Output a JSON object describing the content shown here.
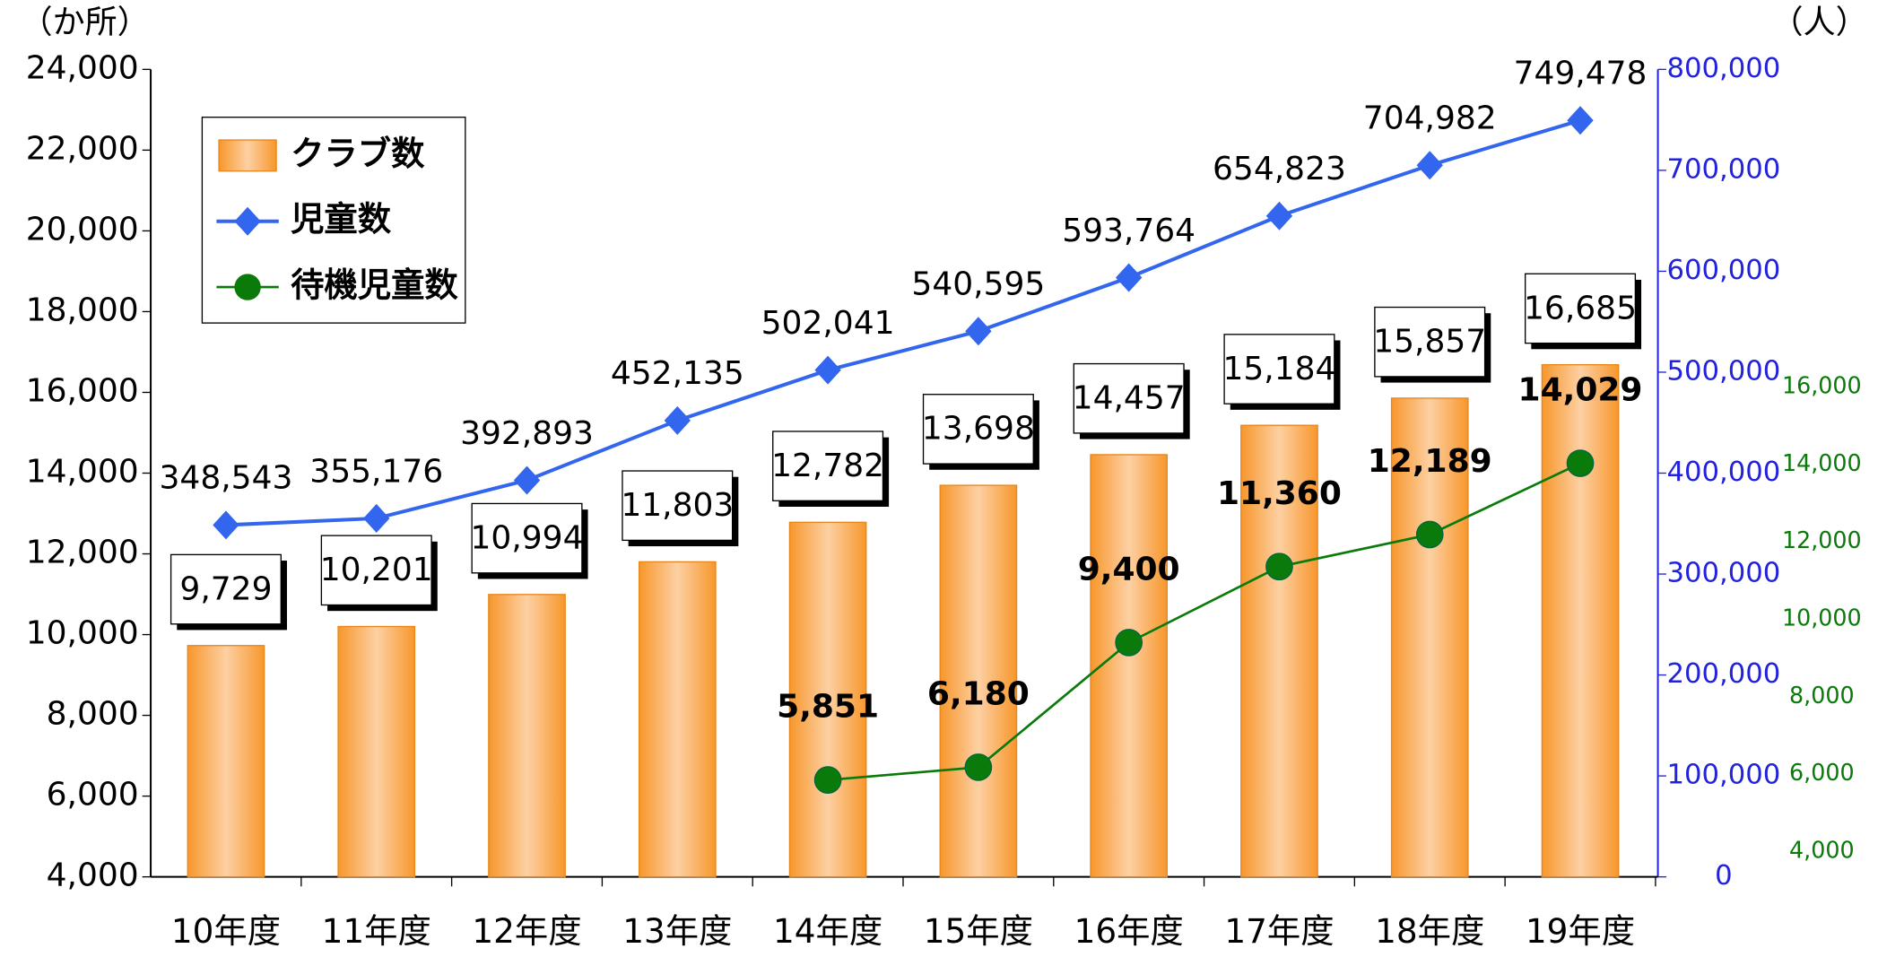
{
  "chart_data": {
    "type": "bar",
    "y_label": "（か所）",
    "y2_label": "（人）",
    "categories": [
      "10年度",
      "11年度",
      "12年度",
      "13年度",
      "14年度",
      "15年度",
      "16年度",
      "17年度",
      "18年度",
      "19年度"
    ],
    "series": [
      {
        "name": "クラブ数",
        "type": "bar",
        "axis": "y",
        "color": "#f7972c",
        "values": [
          9729,
          10201,
          10994,
          11803,
          12782,
          13698,
          14457,
          15184,
          15857,
          16685
        ],
        "value_labels": [
          "9,729",
          "10,201",
          "10,994",
          "11,803",
          "12,782",
          "13,698",
          "14,457",
          "15,184",
          "15,857",
          "16,685"
        ]
      },
      {
        "name": "児童数",
        "type": "line",
        "axis": "y2",
        "color": "#3366ee",
        "values": [
          348543,
          355176,
          392893,
          452135,
          502041,
          540595,
          593764,
          654823,
          704982,
          749478
        ],
        "value_labels": [
          "348,543",
          "355,176",
          "392,893",
          "452,135",
          "502,041",
          "540,595",
          "593,764",
          "654,823",
          "704,982",
          "749,478"
        ]
      },
      {
        "name": "待機児童数",
        "type": "line",
        "axis": "y3",
        "color": "#0a7a0a",
        "values": [
          null,
          null,
          null,
          null,
          5851,
          6180,
          9400,
          11360,
          12189,
          14029
        ],
        "value_labels": [
          null,
          null,
          null,
          null,
          "5,851",
          "6,180",
          "9,400",
          "11,360",
          "12,189",
          "14,029"
        ]
      }
    ],
    "ylim": [
      4000,
      24000
    ],
    "yticks": [
      {
        "value": 4000,
        "label": "4,000"
      },
      {
        "value": 6000,
        "label": "6,000"
      },
      {
        "value": 8000,
        "label": "8,000"
      },
      {
        "value": 10000,
        "label": "10,000"
      },
      {
        "value": 12000,
        "label": "12,000"
      },
      {
        "value": 14000,
        "label": "14,000"
      },
      {
        "value": 16000,
        "label": "16,000"
      },
      {
        "value": 18000,
        "label": "18,000"
      },
      {
        "value": 20000,
        "label": "20,000"
      },
      {
        "value": 22000,
        "label": "22,000"
      },
      {
        "value": 24000,
        "label": "24,000"
      }
    ],
    "y2lim": [
      0,
      800000
    ],
    "y2ticks": [
      0,
      {
        "value": 100000,
        "label": "100,000"
      },
      {
        "value": 200000,
        "label": "200,000"
      },
      {
        "value": 300000,
        "label": "300,000"
      },
      {
        "value": 400000,
        "label": "400,000"
      },
      {
        "value": 500000,
        "label": "500,000"
      },
      {
        "value": 600000,
        "label": "600,000"
      },
      {
        "value": 700000,
        "label": "700,000"
      },
      {
        "value": 800000,
        "label": "800,000"
      }
    ],
    "y3lim": [
      3350,
      24200
    ],
    "y3ticks": [
      {
        "value": 4000,
        "label": "4,000"
      },
      {
        "value": 6000,
        "label": "6,000"
      },
      {
        "value": 8000,
        "label": "8,000"
      },
      {
        "value": 10000,
        "label": "10,000"
      },
      {
        "value": 12000,
        "label": "12,000"
      },
      {
        "value": 14000,
        "label": "14,000"
      },
      {
        "value": 16000,
        "label": "16,000"
      }
    ],
    "grid": false
  }
}
